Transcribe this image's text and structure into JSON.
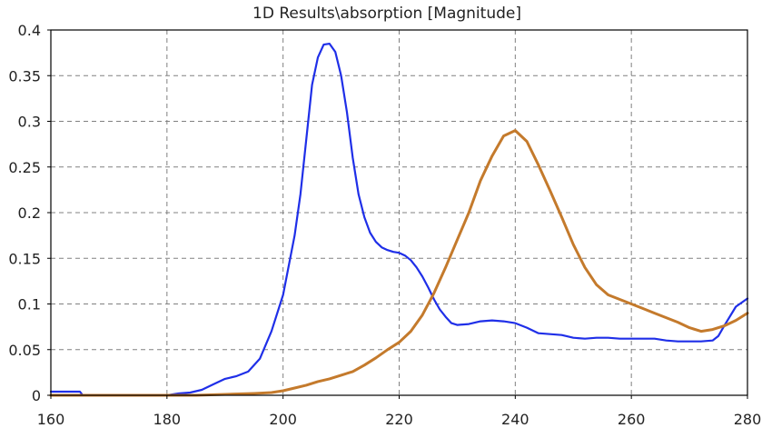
{
  "chart_data": {
    "type": "line",
    "title": "1D Results\\absorption [Magnitude]",
    "xlabel": "",
    "ylabel": "",
    "xlim": [
      160,
      280
    ],
    "ylim": [
      0,
      0.4
    ],
    "xticks": [
      160,
      180,
      200,
      220,
      240,
      260,
      280
    ],
    "yticks": [
      0,
      0.05,
      0.1,
      0.15,
      0.2,
      0.25,
      0.3,
      0.35,
      0.4
    ],
    "ytick_labels": [
      "0",
      "0.05",
      "0.1",
      "0.15",
      "0.2",
      "0.25",
      "0.3",
      "0.35",
      "0.4"
    ],
    "grid": true,
    "legend": "none",
    "series": [
      {
        "color": "#1f2fe8",
        "x": [
          160,
          165,
          165.5,
          170,
          175,
          180,
          182,
          184,
          186,
          188,
          190,
          192,
          194,
          196,
          198,
          200,
          202,
          203,
          204,
          205,
          206,
          207,
          208,
          209,
          210,
          211,
          212,
          213,
          214,
          215,
          216,
          217,
          218,
          219,
          220,
          221,
          222,
          223,
          224,
          225,
          226,
          227,
          228,
          229,
          230,
          232,
          234,
          236,
          238,
          240,
          242,
          244,
          246,
          248,
          250,
          252,
          254,
          256,
          258,
          260,
          262,
          264,
          266,
          268,
          270,
          272,
          274,
          275,
          276,
          278,
          280
        ],
        "y": [
          0.004,
          0.004,
          0.0,
          0.0,
          0.0,
          0.0,
          0.002,
          0.003,
          0.006,
          0.012,
          0.018,
          0.021,
          0.026,
          0.04,
          0.07,
          0.11,
          0.175,
          0.22,
          0.28,
          0.34,
          0.37,
          0.384,
          0.385,
          0.376,
          0.35,
          0.31,
          0.26,
          0.22,
          0.195,
          0.178,
          0.168,
          0.162,
          0.159,
          0.157,
          0.156,
          0.153,
          0.148,
          0.14,
          0.13,
          0.118,
          0.105,
          0.094,
          0.086,
          0.079,
          0.077,
          0.078,
          0.081,
          0.082,
          0.081,
          0.079,
          0.074,
          0.068,
          0.067,
          0.066,
          0.063,
          0.062,
          0.063,
          0.063,
          0.062,
          0.062,
          0.062,
          0.062,
          0.06,
          0.059,
          0.059,
          0.059,
          0.06,
          0.065,
          0.076,
          0.097,
          0.106
        ]
      },
      {
        "color": "#c47a2c",
        "x": [
          160,
          170,
          180,
          185,
          190,
          195,
          198,
          200,
          202,
          204,
          206,
          208,
          210,
          212,
          214,
          216,
          218,
          220,
          222,
          224,
          226,
          228,
          230,
          232,
          234,
          236,
          238,
          240,
          242,
          244,
          246,
          248,
          250,
          252,
          254,
          256,
          258,
          260,
          262,
          264,
          266,
          268,
          270,
          272,
          274,
          276,
          278,
          280
        ],
        "y": [
          0.0,
          0.0,
          0.0,
          0.0,
          0.001,
          0.002,
          0.003,
          0.005,
          0.008,
          0.011,
          0.015,
          0.018,
          0.022,
          0.026,
          0.033,
          0.041,
          0.05,
          0.058,
          0.07,
          0.088,
          0.112,
          0.14,
          0.17,
          0.2,
          0.235,
          0.262,
          0.284,
          0.29,
          0.278,
          0.252,
          0.224,
          0.195,
          0.165,
          0.14,
          0.121,
          0.11,
          0.105,
          0.1,
          0.095,
          0.09,
          0.085,
          0.08,
          0.074,
          0.07,
          0.072,
          0.076,
          0.082,
          0.09
        ]
      }
    ]
  }
}
